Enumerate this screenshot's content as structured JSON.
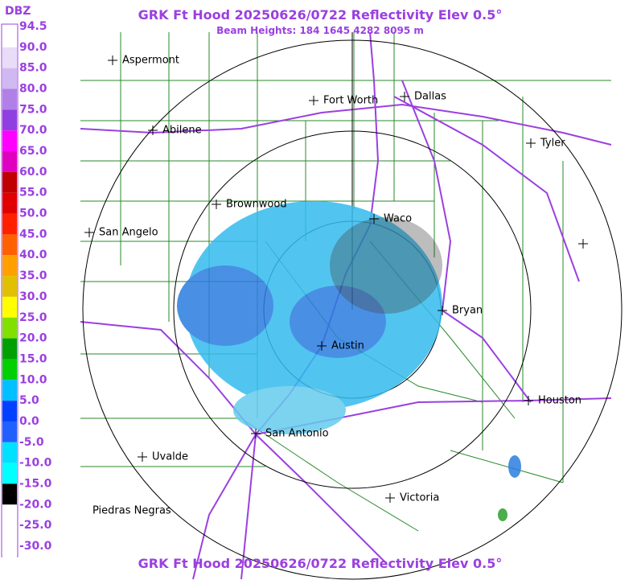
{
  "header": {
    "title": "GRK Ft Hood 20250626/0722 Reflectivity Elev 0.5°",
    "subtitle": "Beam Heights: 184 1645 4282 8095 m"
  },
  "footer": {
    "title": "GRK Ft Hood 20250626/0722 Reflectivity Elev 0.5°"
  },
  "legend": {
    "unit": "DBZ",
    "labels": [
      "94.5",
      "90.0",
      "85.0",
      "80.0",
      "75.0",
      "70.0",
      "65.0",
      "60.0",
      "55.0",
      "50.0",
      "45.0",
      "40.0",
      "35.0",
      "30.0",
      "25.0",
      "20.0",
      "15.0",
      "10.0",
      "5.0",
      "0.0",
      "-5.0",
      "-10.0",
      "-15.0",
      "-20.0",
      "-25.0",
      "-30.0"
    ]
  },
  "cities": [
    {
      "label": "Aspermont"
    },
    {
      "label": "Fort Worth"
    },
    {
      "label": "Dallas"
    },
    {
      "label": "Abilene"
    },
    {
      "label": "Tyler"
    },
    {
      "label": "Brownwood"
    },
    {
      "label": "Waco"
    },
    {
      "label": "San Angelo"
    },
    {
      "label": "Bryan"
    },
    {
      "label": "Austin"
    },
    {
      "label": "Houston"
    },
    {
      "label": "San Antonio"
    },
    {
      "label": "Uvalde"
    },
    {
      "label": "Victoria"
    },
    {
      "label": "Piedras Negras"
    }
  ]
}
